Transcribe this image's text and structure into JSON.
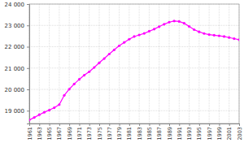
{
  "chart_data": {
    "type": "line",
    "color": "#ff00ff",
    "marker": "circle",
    "grid": true,
    "x": [
      1961,
      1962,
      1963,
      1964,
      1965,
      1966,
      1967,
      1968,
      1969,
      1970,
      1971,
      1972,
      1973,
      1974,
      1975,
      1976,
      1977,
      1978,
      1979,
      1980,
      1981,
      1982,
      1983,
      1984,
      1985,
      1986,
      1987,
      1988,
      1989,
      1990,
      1991,
      1992,
      1993,
      1994,
      1995,
      1996,
      1997,
      1998,
      1999,
      2000,
      2001,
      2002,
      2003
    ],
    "values": [
      18567,
      18681,
      18813,
      18927,
      19027,
      19141,
      19285,
      19721,
      20010,
      20253,
      20470,
      20663,
      20828,
      21029,
      21245,
      21446,
      21658,
      21855,
      22048,
      22201,
      22353,
      22478,
      22553,
      22625,
      22725,
      22824,
      22940,
      23054,
      23152,
      23207,
      23185,
      23100,
      22950,
      22800,
      22700,
      22620,
      22570,
      22540,
      22510,
      22480,
      22430,
      22380,
      22330
    ],
    "xlim": [
      1961,
      2003
    ],
    "xticks": [
      1961,
      1963,
      1965,
      1967,
      1969,
      1971,
      1973,
      1975,
      1977,
      1979,
      1981,
      1983,
      1985,
      1987,
      1989,
      1991,
      1993,
      1995,
      1997,
      1999,
      2001,
      2003
    ],
    "ylim": [
      18400,
      24000
    ],
    "yticks": [
      {
        "value": 19000,
        "label": "19 000"
      },
      {
        "value": 20000,
        "label": "20 000"
      },
      {
        "value": 21000,
        "label": "21 000"
      },
      {
        "value": 22000,
        "label": "22 000"
      },
      {
        "value": 23000,
        "label": "23 000"
      },
      {
        "value": 24000,
        "label": "24 000"
      }
    ]
  }
}
